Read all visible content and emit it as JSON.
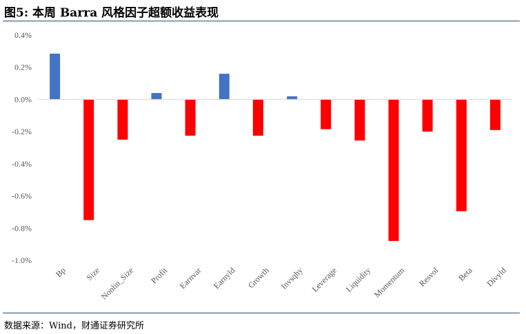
{
  "header": {
    "title": "图5: 本周 Barra 风格因子超额收益表现"
  },
  "footer": {
    "source": "数据来源：Wind，财通证券研究所"
  },
  "chart_data": {
    "type": "bar",
    "title": "",
    "xlabel": "",
    "ylabel": "",
    "ylim": [
      -1.0,
      0.4
    ],
    "ytick_values": [
      0.4,
      0.2,
      0.0,
      -0.2,
      -0.4,
      -0.6,
      -0.8,
      -1.0
    ],
    "ytick_labels": [
      "0.4%",
      "0.2%",
      "0.0%",
      "-0.2%",
      "-0.4%",
      "-0.6%",
      "-0.8%",
      "-1.0%"
    ],
    "unit": "%",
    "grid": false,
    "legend": "none",
    "categories": [
      "Bp",
      "Size",
      "Nonlin_Size",
      "Profit",
      "Earnvar",
      "Earnyld",
      "Growth",
      "Invsqhy",
      "Leverage",
      "Liquidity",
      "Momentum",
      "Resvol",
      "Beta",
      "Divyld"
    ],
    "values": [
      0.285,
      -0.75,
      -0.25,
      0.04,
      -0.225,
      0.16,
      -0.225,
      0.02,
      -0.185,
      -0.255,
      -0.88,
      -0.2,
      -0.695,
      -0.19
    ],
    "colors": {
      "positive": "#4472c4",
      "negative": "#ff0000",
      "axis": "#d9d9d9"
    }
  }
}
